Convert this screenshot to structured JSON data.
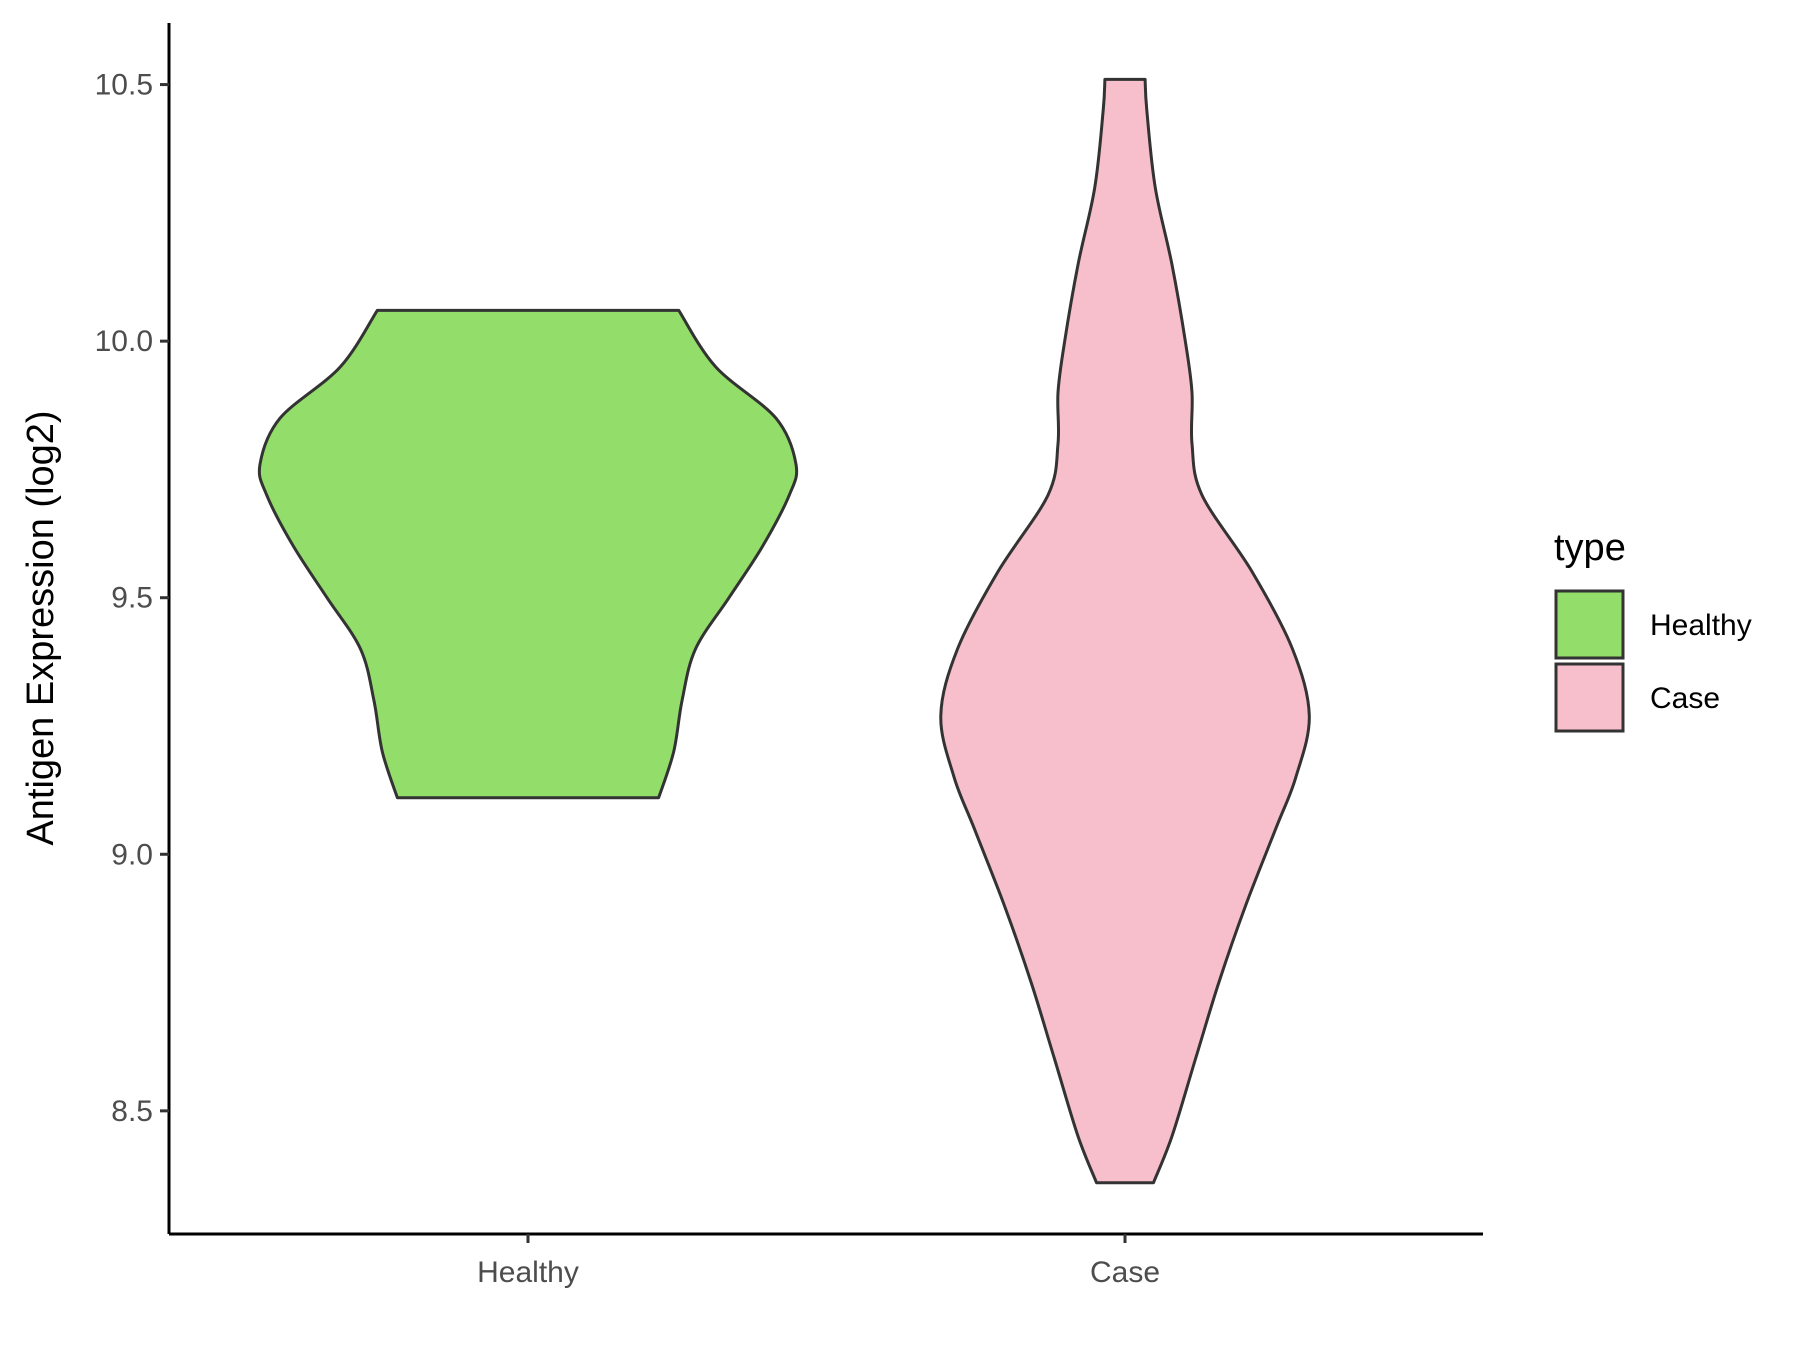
{
  "chart_data": {
    "type": "violin",
    "ylabel": "Antigen Expression (log2)",
    "xlabel": "",
    "categories": [
      "Healthy",
      "Case"
    ],
    "ylim": [
      8.26,
      10.62
    ],
    "yticks": [
      "8.5",
      "9.0",
      "9.5",
      "10.0",
      "10.5"
    ],
    "grid": false,
    "legend": {
      "title": "type",
      "position": "right",
      "entries": [
        {
          "label": "Healthy",
          "color": "#93dd6a"
        },
        {
          "label": "Case",
          "color": "#f7bfcb"
        }
      ]
    },
    "series": [
      {
        "name": "Healthy",
        "color": "#93dd6a",
        "min": 9.11,
        "max": 10.06,
        "density": [
          [
            9.11,
            0.39
          ],
          [
            9.2,
            0.435
          ],
          [
            9.3,
            0.46
          ],
          [
            9.4,
            0.5
          ],
          [
            9.5,
            0.6
          ],
          [
            9.6,
            0.7
          ],
          [
            9.7,
            0.78
          ],
          [
            9.76,
            0.8
          ],
          [
            9.85,
            0.74
          ],
          [
            9.95,
            0.56
          ],
          [
            10.06,
            0.45
          ]
        ]
      },
      {
        "name": "Case",
        "color": "#f7bfcb",
        "min": 8.36,
        "max": 10.51,
        "density": [
          [
            8.36,
            0.085
          ],
          [
            8.45,
            0.14
          ],
          [
            8.6,
            0.21
          ],
          [
            8.75,
            0.28
          ],
          [
            8.9,
            0.36
          ],
          [
            9.05,
            0.45
          ],
          [
            9.15,
            0.51
          ],
          [
            9.27,
            0.55
          ],
          [
            9.4,
            0.5
          ],
          [
            9.55,
            0.38
          ],
          [
            9.7,
            0.23
          ],
          [
            9.8,
            0.2
          ],
          [
            9.9,
            0.2
          ],
          [
            10.0,
            0.18
          ],
          [
            10.15,
            0.14
          ],
          [
            10.3,
            0.09
          ],
          [
            10.45,
            0.065
          ],
          [
            10.51,
            0.06
          ]
        ]
      }
    ]
  }
}
